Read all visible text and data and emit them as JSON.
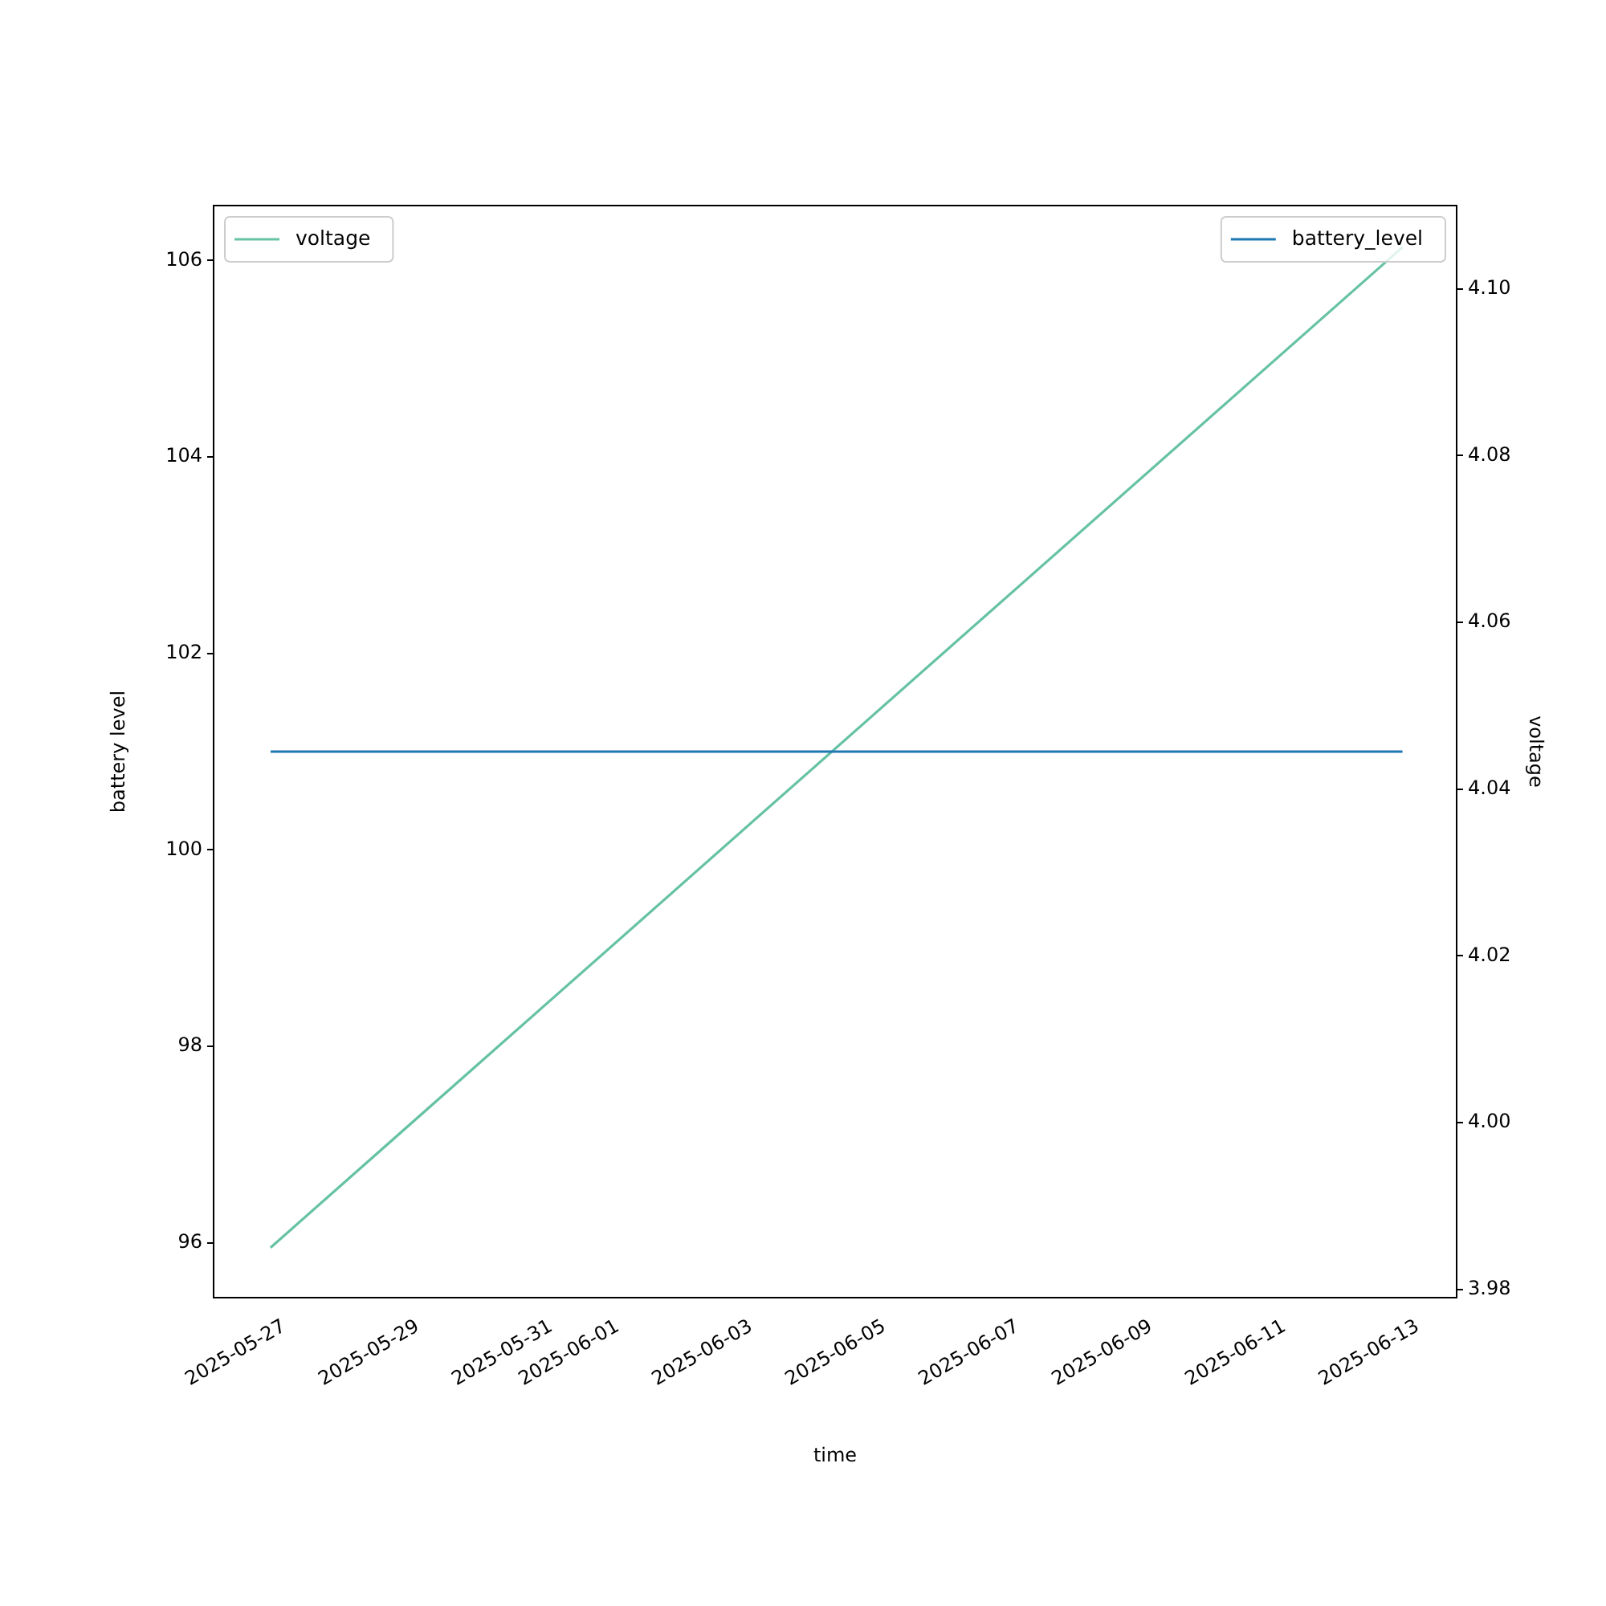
{
  "chart_data": {
    "type": "line",
    "xlabel": "time",
    "ylabel": "battery level",
    "y2label": "voltage",
    "x": [
      "2025-05-26T19:00",
      "2025-06-12T18:30"
    ],
    "series": [
      {
        "name": "battery_level",
        "color": "#1f77b4",
        "values": [
          101,
          101
        ]
      },
      {
        "name": "voltage",
        "color": "#66c2a5",
        "axis": "y2",
        "values": [
          3.985,
          4.105
        ]
      }
    ],
    "xlim": [
      "2025-05-25T22:30",
      "2025-06-13T14:00"
    ],
    "xticks": [
      "2025-05-27",
      "2025-05-29",
      "2025-05-31",
      "2025-06-01",
      "2025-06-03",
      "2025-06-05",
      "2025-06-07",
      "2025-06-09",
      "2025-06-11",
      "2025-06-13"
    ],
    "ylim": [
      95.44,
      106.56
    ],
    "yticks": [
      96,
      98,
      100,
      102,
      104,
      106
    ],
    "y2lim": [
      3.979,
      4.11
    ],
    "y2ticks": [
      3.98,
      {
        "value": 4.0,
        "label": "4.00"
      },
      4.02,
      4.04,
      4.06,
      4.08,
      {
        "value": 4.1,
        "label": "4.10"
      }
    ],
    "grid": false,
    "legend": "top",
    "marker": "none",
    "line_style": "solid"
  }
}
